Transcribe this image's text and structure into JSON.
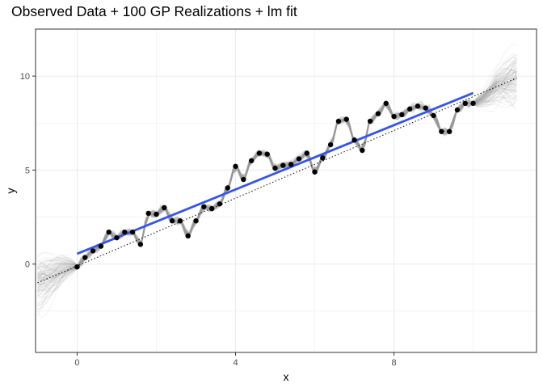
{
  "chart_data": {
    "type": "scatter",
    "title": "Observed Data + 100 GP Realizations + lm fit",
    "xlabel": "x",
    "ylabel": "y",
    "xlim": [
      -1.05,
      11.6
    ],
    "ylim": [
      -4.7,
      12.5
    ],
    "x_ticks": [
      0,
      4,
      8
    ],
    "y_ticks": [
      0,
      5,
      10
    ],
    "grid": true,
    "legend": "none",
    "colors": {
      "points": "#000000",
      "lm_line": "#3355ee",
      "trend": "#000000",
      "realizations": "#9a9a9a",
      "grid": "#ebebeb",
      "panel_border": "#333333"
    },
    "points": {
      "x": [
        0.0,
        0.2,
        0.4,
        0.6,
        0.8,
        1.0,
        1.2,
        1.4,
        1.6,
        1.8,
        2.0,
        2.2,
        2.4,
        2.6,
        2.8,
        3.0,
        3.2,
        3.4,
        3.6,
        3.8,
        4.0,
        4.2,
        4.4,
        4.6,
        4.8,
        5.0,
        5.2,
        5.4,
        5.6,
        5.8,
        6.0,
        6.2,
        6.4,
        6.6,
        6.8,
        7.0,
        7.2,
        7.4,
        7.6,
        7.8,
        8.0,
        8.2,
        8.4,
        8.6,
        8.8,
        9.0,
        9.2,
        9.4,
        9.6,
        9.8,
        10.0
      ],
      "y": [
        -0.15,
        0.35,
        0.7,
        0.95,
        1.7,
        1.4,
        1.7,
        1.7,
        1.05,
        2.7,
        2.65,
        3.0,
        2.3,
        2.3,
        1.5,
        2.3,
        3.05,
        2.95,
        3.2,
        4.05,
        5.2,
        4.5,
        5.5,
        5.9,
        5.85,
        5.1,
        5.25,
        5.3,
        5.6,
        5.9,
        4.9,
        5.65,
        6.35,
        7.6,
        7.7,
        6.6,
        6.05,
        7.6,
        8.0,
        8.55,
        7.85,
        7.95,
        8.25,
        8.4,
        8.3,
        7.9,
        7.05,
        7.05,
        8.2,
        8.55,
        8.55
      ]
    },
    "lm_fit": {
      "x": [
        0,
        10
      ],
      "y": [
        0.55,
        9.1
      ]
    },
    "trend": {
      "x": [
        -1,
        11.1
      ],
      "y": [
        -1.0,
        9.9
      ]
    },
    "realizations": {
      "count": 100
    }
  }
}
